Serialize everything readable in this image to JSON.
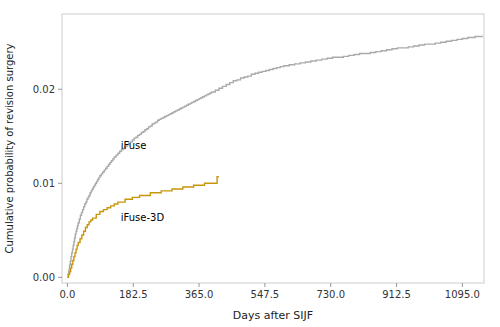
{
  "chart_data": {
    "type": "step",
    "xlabel": "Days after SIJF",
    "ylabel": "Cumulative probability of revision surgery",
    "xlim": [
      -15,
      1155
    ],
    "ylim": [
      -0.0006,
      0.028
    ],
    "xticks": [
      {
        "value": 0,
        "label": "0.0"
      },
      182.5,
      {
        "value": 365.0,
        "label": "365.0"
      },
      547.5,
      {
        "value": 730.0,
        "label": "730.0"
      },
      912.5,
      {
        "value": 1095.0,
        "label": "1095.0"
      }
    ],
    "yticks": [
      {
        "value": 0.0,
        "label": "0.00"
      },
      {
        "value": 0.01,
        "label": "0.01"
      },
      {
        "value": 0.02,
        "label": "0.02"
      }
    ],
    "grid": false,
    "annotations": [
      {
        "text": "iFuse",
        "x": 148,
        "y": 0.0134
      },
      {
        "text": "iFuse-3D",
        "x": 148,
        "y": 0.0058
      }
    ],
    "series": [
      {
        "color": "#aaaaaa",
        "x": [
          0,
          2,
          4,
          6,
          8,
          10,
          12,
          14,
          16,
          18,
          20,
          22,
          24,
          26,
          28,
          30,
          33,
          36,
          39,
          42,
          45,
          48,
          51,
          54,
          57,
          60,
          63,
          66,
          69,
          72,
          75,
          78,
          81,
          84,
          87,
          90,
          94,
          98,
          102,
          106,
          110,
          114,
          118,
          122,
          126,
          130,
          135,
          140,
          145,
          150,
          155,
          160,
          165,
          170,
          175,
          180,
          185,
          190,
          195,
          200,
          205,
          210,
          215,
          220,
          225,
          230,
          235,
          240,
          245,
          250,
          255,
          260,
          265,
          270,
          275,
          280,
          285,
          290,
          295,
          300,
          305,
          310,
          315,
          320,
          325,
          330,
          335,
          340,
          345,
          350,
          355,
          360,
          365,
          370,
          375,
          380,
          385,
          390,
          395,
          400,
          410,
          420,
          430,
          440,
          450,
          460,
          470,
          480,
          490,
          500,
          510,
          520,
          530,
          540,
          550,
          560,
          570,
          580,
          590,
          600,
          615,
          630,
          645,
          660,
          675,
          690,
          705,
          720,
          735,
          750,
          765,
          780,
          795,
          810,
          825,
          840,
          855,
          870,
          885,
          900,
          915,
          930,
          945,
          960,
          975,
          990,
          1005,
          1020,
          1035,
          1050,
          1065,
          1080,
          1095,
          1110,
          1130,
          1150
        ],
        "values": [
          0.0,
          0.0004,
          0.0008,
          0.0013,
          0.0017,
          0.0022,
          0.0026,
          0.003,
          0.0034,
          0.0038,
          0.0042,
          0.0046,
          0.0049,
          0.0052,
          0.0055,
          0.0058,
          0.0062,
          0.0066,
          0.0069,
          0.0072,
          0.0075,
          0.0078,
          0.008,
          0.0083,
          0.0085,
          0.0087,
          0.009,
          0.0092,
          0.0094,
          0.0096,
          0.0098,
          0.01,
          0.0102,
          0.0104,
          0.0106,
          0.0108,
          0.011,
          0.0112,
          0.0114,
          0.0116,
          0.0118,
          0.012,
          0.0122,
          0.0124,
          0.0126,
          0.0128,
          0.013,
          0.0132,
          0.0134,
          0.0136,
          0.0137,
          0.0139,
          0.0141,
          0.0143,
          0.0144,
          0.0146,
          0.0148,
          0.0149,
          0.0151,
          0.0152,
          0.0154,
          0.0155,
          0.0157,
          0.0158,
          0.016,
          0.0161,
          0.0163,
          0.0164,
          0.0165,
          0.0167,
          0.0168,
          0.0169,
          0.017,
          0.0171,
          0.0172,
          0.0173,
          0.0174,
          0.0175,
          0.0176,
          0.0177,
          0.0178,
          0.0179,
          0.018,
          0.0181,
          0.0182,
          0.0183,
          0.0184,
          0.0185,
          0.0186,
          0.0187,
          0.0188,
          0.0189,
          0.019,
          0.0191,
          0.0192,
          0.0193,
          0.0194,
          0.0195,
          0.0196,
          0.0197,
          0.0199,
          0.0201,
          0.0203,
          0.0205,
          0.0207,
          0.0209,
          0.021,
          0.0212,
          0.0213,
          0.0214,
          0.0216,
          0.0217,
          0.0218,
          0.0219,
          0.022,
          0.0221,
          0.0222,
          0.0223,
          0.0224,
          0.0225,
          0.0226,
          0.0227,
          0.0228,
          0.0229,
          0.023,
          0.0231,
          0.0232,
          0.0233,
          0.0234,
          0.0234,
          0.0235,
          0.0236,
          0.0237,
          0.0238,
          0.0238,
          0.0239,
          0.024,
          0.0241,
          0.0242,
          0.0243,
          0.0244,
          0.0244,
          0.0245,
          0.0246,
          0.0247,
          0.0248,
          0.0248,
          0.0249,
          0.025,
          0.0251,
          0.0252,
          0.0253,
          0.0254,
          0.0255,
          0.0256,
          0.0257
        ]
      },
      {
        "color": "#C8960C",
        "x": [
          0,
          3,
          6,
          9,
          12,
          15,
          18,
          21,
          24,
          27,
          30,
          35,
          40,
          45,
          50,
          55,
          60,
          65,
          70,
          80,
          90,
          100,
          110,
          120,
          130,
          140,
          160,
          180,
          200,
          230,
          260,
          290,
          320,
          350,
          380,
          415,
          420
        ],
        "values": [
          0.0,
          0.0003,
          0.0006,
          0.001,
          0.0014,
          0.0018,
          0.0022,
          0.0026,
          0.003,
          0.0034,
          0.0037,
          0.0041,
          0.0045,
          0.0049,
          0.0053,
          0.0056,
          0.0059,
          0.0061,
          0.0063,
          0.0067,
          0.007,
          0.0072,
          0.0074,
          0.0076,
          0.0078,
          0.008,
          0.0083,
          0.0085,
          0.0087,
          0.009,
          0.0092,
          0.0094,
          0.0096,
          0.0098,
          0.01,
          0.0107,
          0.0107
        ]
      }
    ]
  }
}
